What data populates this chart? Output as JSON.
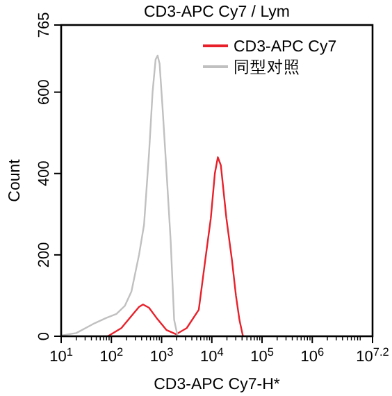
{
  "chart_data": {
    "type": "line",
    "title": "CD3-APC Cy7 / Lym",
    "xlabel": "CD3-APC Cy7-H*",
    "ylabel": "Count",
    "log": "x",
    "xlim": [
      10,
      15848932
    ],
    "ylim": [
      0,
      765
    ],
    "xticks": [
      {
        "value": 10,
        "label": "10$^{1}$"
      },
      {
        "value": 100,
        "label": "10$^{2}$"
      },
      {
        "value": 1000,
        "label": "10$^{3}$"
      },
      {
        "value": 10000,
        "label": "10$^{4}$"
      },
      {
        "value": 100000,
        "label": "10$^{5}$"
      },
      {
        "value": 1000000,
        "label": "10$^{6}$"
      },
      {
        "value": 15848932,
        "label": "10$^{7.2}$"
      }
    ],
    "yticks": [
      0,
      200,
      400,
      600,
      765
    ],
    "grid": false,
    "legend": "top right",
    "series": [
      {
        "name": "CD3-APC Cy7",
        "color": "#e8202a",
        "x": [
          85,
          158,
          251,
          355,
          427,
          562,
          794,
          1259,
          1950,
          3162,
          5495,
          7413,
          9550,
          11482,
          13183,
          15136,
          19498,
          25119,
          30200,
          35481,
          41687
        ],
        "values": [
          0,
          20,
          50,
          72,
          78,
          70,
          45,
          15,
          5,
          20,
          65,
          188,
          290,
          400,
          440,
          420,
          290,
          188,
          100,
          40,
          0
        ]
      },
      {
        "name": "同型对照",
        "color": "#c0c0c0",
        "x": [
          10,
          20,
          43,
          79,
          126,
          186,
          251,
          355,
          447,
          562,
          661,
          759,
          832,
          912,
          1047,
          1259,
          1514,
          1778,
          2089
        ],
        "values": [
          2,
          8,
          30,
          45,
          55,
          75,
          110,
          200,
          274,
          450,
          600,
          680,
          690,
          670,
          560,
          400,
          235,
          40,
          0
        ]
      }
    ]
  }
}
